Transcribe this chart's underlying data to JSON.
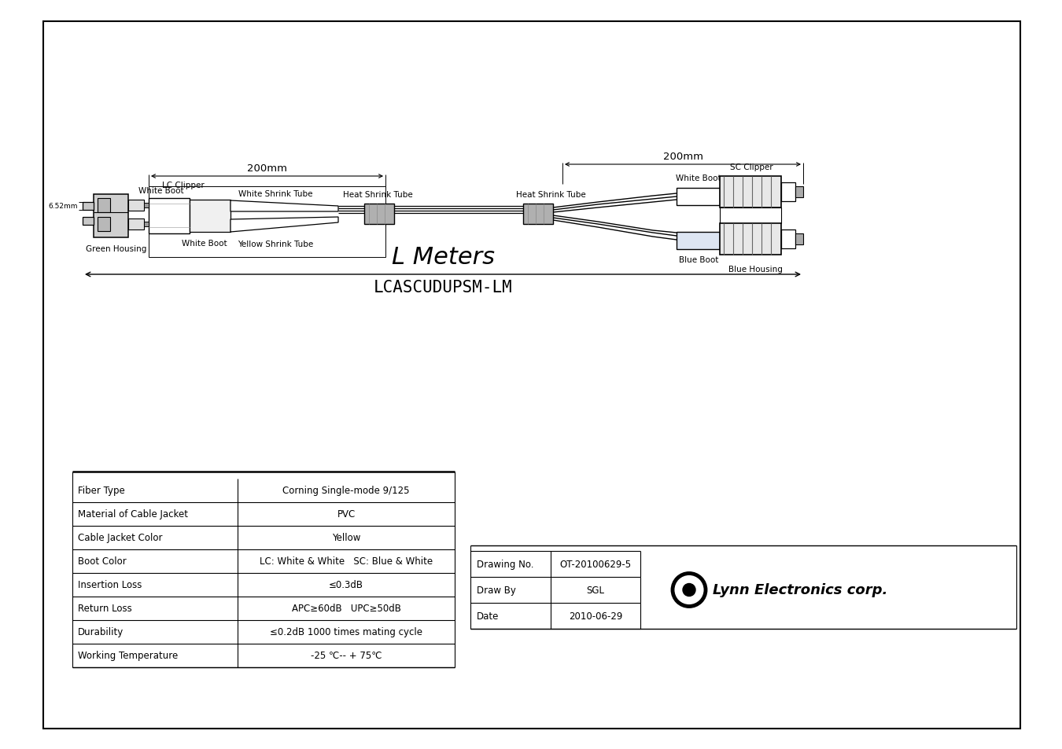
{
  "bg_color": "#ffffff",
  "dim_left": "200mm",
  "dim_right": "200mm",
  "title_large": "L Meters",
  "title_model": "LCASCUDUPSM-LM",
  "lc_size_label": "6.52mm",
  "table_rows": [
    [
      "Fiber Type",
      "Corning Single-mode 9/125"
    ],
    [
      "Material of Cable Jacket",
      "PVC"
    ],
    [
      "Cable Jacket Color",
      "Yellow"
    ],
    [
      "Boot Color",
      "LC: White & White   SC: Blue & White"
    ],
    [
      "Insertion Loss",
      "≤0.3dB"
    ],
    [
      "Return Loss",
      "APC≥60dB   UPC≥50dB"
    ],
    [
      "Durability",
      "≤0.2dB 1000 times mating cycle"
    ],
    [
      "Working Temperature",
      "-25 ℃-- + 75℃"
    ]
  ],
  "info_rows": [
    [
      "Drawing No.",
      "OT-20100629-5"
    ],
    [
      "Draw By",
      "SGL"
    ],
    [
      "Date",
      "2010-06-29"
    ]
  ],
  "company": "Lynn Electronics corp.",
  "labels": {
    "lc_clipper": "LC Clipper",
    "white_boot_lc": "White Boot",
    "white_shrink": "White Shrink Tube",
    "heat_shrink_l": "Heat Shrink Tube",
    "heat_shrink_r": "Heat Shrink Tube",
    "green_housing": "Green Housing",
    "white_boot2": "White Boot",
    "yellow_shrink": "Yellow Shrink Tube",
    "sc_clipper": "SC Clipper",
    "white_boot_sc": "White Boot",
    "blue_boot": "Blue Boot",
    "blue_housing": "Blue Housing"
  }
}
